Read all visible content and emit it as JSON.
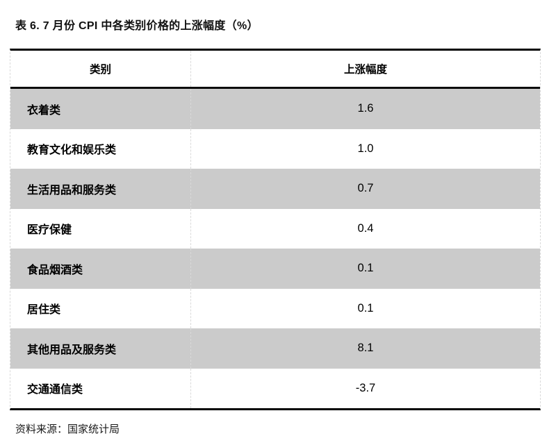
{
  "title": "表 6. 7 月份 CPI 中各类别价格的上涨幅度（%）",
  "table": {
    "headers": [
      "类别",
      "上涨幅度"
    ],
    "rows": [
      {
        "category": "衣着类",
        "value": "1.6"
      },
      {
        "category": "教育文化和娱乐类",
        "value": "1.0"
      },
      {
        "category": "生活用品和服务类",
        "value": "0.7"
      },
      {
        "category": "医疗保健",
        "value": "0.4"
      },
      {
        "category": "食品烟酒类",
        "value": "0.1"
      },
      {
        "category": "居住类",
        "value": "0.1"
      },
      {
        "category": "其他用品及服务类",
        "value": "8.1"
      },
      {
        "category": "交通通信类",
        "value": "-3.7"
      }
    ]
  },
  "footer": {
    "source": "资料来源：国家统计局"
  },
  "colors": {
    "row_gray": "#cbcbcb",
    "row_white": "#ffffff",
    "border_black": "#000000",
    "divider_dashed": "#d9d9d9",
    "text": "#111111"
  },
  "chart_data": {
    "type": "table",
    "title": "表 6. 7 月份 CPI 中各类别价格的上涨幅度（%）",
    "categories": [
      "衣着类",
      "教育文化和娱乐类",
      "生活用品和服务类",
      "医疗保健",
      "食品烟酒类",
      "居住类",
      "其他用品及服务类",
      "交通通信类"
    ],
    "values": [
      1.6,
      1.0,
      0.7,
      0.4,
      0.1,
      0.1,
      8.1,
      -3.7
    ],
    "columns": [
      "类别",
      "上涨幅度"
    ],
    "source": "国家统计局"
  }
}
